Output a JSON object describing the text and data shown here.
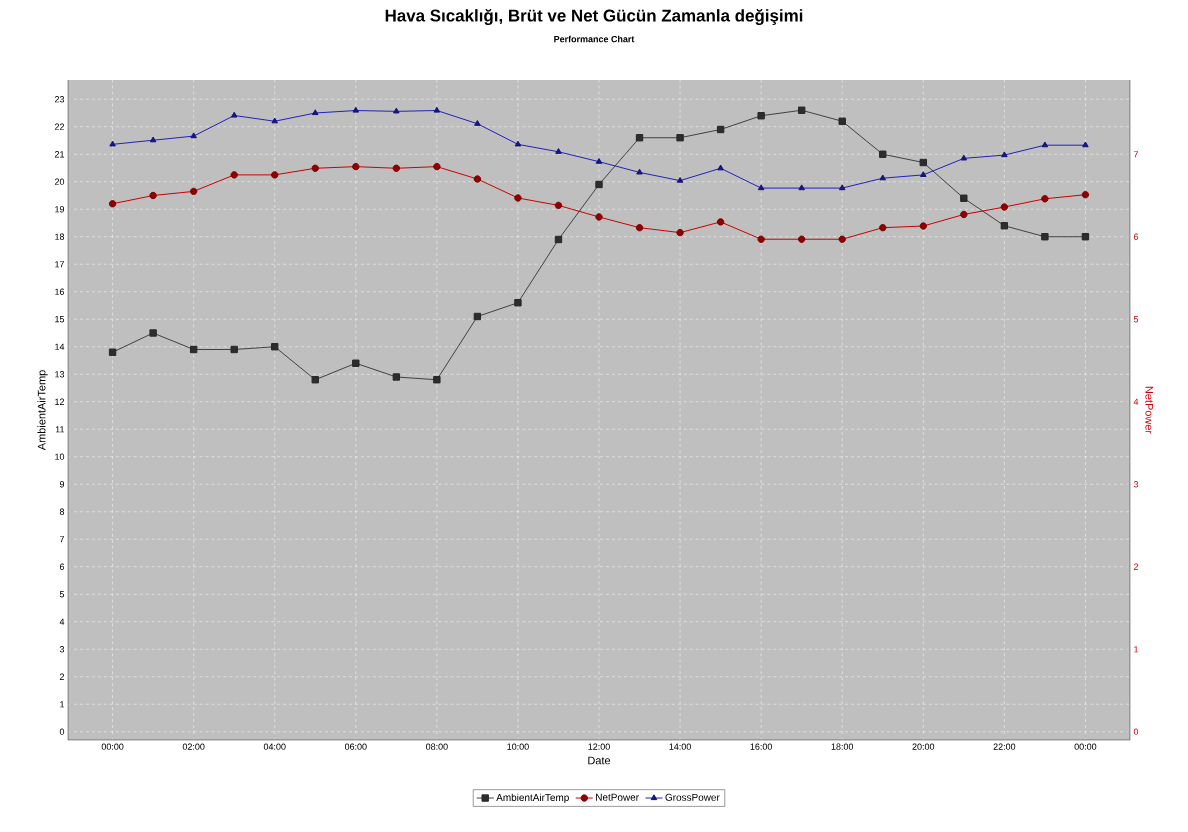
{
  "chart_data": {
    "type": "line",
    "title": "Hava Sıcaklığı, Brüt ve Net Gücün Zamanla değişimi",
    "subtitle": "Performance Chart",
    "xlabel": "Date",
    "ylabel": "AmbientAirTemp",
    "y2label": "NetPower",
    "x": [
      0,
      1,
      2,
      3,
      4,
      5,
      6,
      7,
      8,
      9,
      10,
      11,
      12,
      13,
      14,
      15,
      16,
      17,
      18,
      19,
      20,
      21,
      22,
      23,
      24
    ],
    "series": [
      {
        "name": "AmbientAirTemp",
        "color": "#404040",
        "marker": "square",
        "values": [
          13.8,
          14.5,
          13.9,
          13.9,
          14.0,
          12.8,
          13.4,
          12.9,
          12.8,
          15.1,
          15.6,
          17.9,
          19.9,
          21.6,
          21.6,
          21.9,
          22.4,
          22.6,
          22.2,
          21.0,
          20.7,
          19.4,
          18.4,
          18.0,
          18.0
        ]
      },
      {
        "name": "NetPower",
        "color": "#cc0000",
        "marker": "circle",
        "axis": "y2",
        "values": [
          6.4,
          6.5,
          6.55,
          6.75,
          6.75,
          6.83,
          6.85,
          6.83,
          6.85,
          6.7,
          6.47,
          6.38,
          6.24,
          6.11,
          6.05,
          6.18,
          5.97,
          5.97,
          5.97,
          6.11,
          6.13,
          6.27,
          6.36,
          6.46,
          6.51
        ]
      },
      {
        "name": "GrossPower",
        "color": "#2020c0",
        "marker": "triangle",
        "axis": "y2",
        "values": [
          7.12,
          7.17,
          7.22,
          7.47,
          7.4,
          7.5,
          7.53,
          7.52,
          7.53,
          7.37,
          7.12,
          7.03,
          6.91,
          6.78,
          6.68,
          6.83,
          6.59,
          6.59,
          6.59,
          6.71,
          6.75,
          6.95,
          6.99,
          7.11,
          7.11
        ]
      }
    ],
    "xlim": [
      -1.1,
      25.1
    ],
    "xticks": [
      {
        "value": 0,
        "label": "00:00"
      },
      {
        "value": 2,
        "label": "02:00"
      },
      {
        "value": 4,
        "label": "04:00"
      },
      {
        "value": 6,
        "label": "06:00"
      },
      {
        "value": 8,
        "label": "08:00"
      },
      {
        "value": 10,
        "label": "10:00"
      },
      {
        "value": 12,
        "label": "12:00"
      },
      {
        "value": 14,
        "label": "14:00"
      },
      {
        "value": 16,
        "label": "16:00"
      },
      {
        "value": 18,
        "label": "18:00"
      },
      {
        "value": 20,
        "label": "20:00"
      },
      {
        "value": 22,
        "label": "22:00"
      },
      {
        "value": 24,
        "label": "00:00"
      }
    ],
    "ylim": [
      -0.3,
      23.7
    ],
    "yticks": [
      0,
      1,
      2,
      3,
      4,
      5,
      6,
      7,
      8,
      9,
      10,
      11,
      12,
      13,
      14,
      15,
      16,
      17,
      18,
      19,
      20,
      21,
      22,
      23
    ],
    "y2lim": [
      -0.1,
      7.9
    ],
    "y2ticks": [
      0,
      1,
      2,
      3,
      4,
      5,
      6,
      7
    ],
    "grid": true,
    "legend": "bottom",
    "line_style": "solid"
  }
}
